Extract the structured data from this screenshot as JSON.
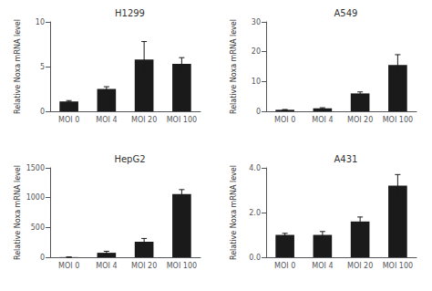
{
  "chart_data": [
    {
      "type": "bar",
      "title": "H1299",
      "ylabel": "Relative Noxa mRNA level",
      "categories": [
        "MOI 0",
        "MOI 4",
        "MOI 20",
        "MOI 100"
      ],
      "values": [
        1.1,
        2.5,
        5.8,
        5.3
      ],
      "errors": [
        0.1,
        0.25,
        2.0,
        0.7
      ],
      "color": "#1a1a1a",
      "ylim": [
        0,
        10
      ],
      "yticks": [
        0,
        5,
        10
      ],
      "grid": false
    },
    {
      "type": "bar",
      "title": "A549",
      "ylabel": "Relative Noxa mRNA level",
      "categories": [
        "MOI 0",
        "MOI 4",
        "MOI 20",
        "MOI 100"
      ],
      "values": [
        0.5,
        1.0,
        6.0,
        15.5
      ],
      "errors": [
        0.1,
        0.2,
        0.5,
        3.5
      ],
      "color": "#1a1a1a",
      "ylim": [
        0,
        30
      ],
      "yticks": [
        0,
        10,
        20,
        30
      ],
      "grid": false
    },
    {
      "type": "bar",
      "title": "HepG2",
      "ylabel": "Relative Noxa mRNA level",
      "categories": [
        "MOI 0",
        "MOI 4",
        "MOI 20",
        "MOI 100"
      ],
      "values": [
        2.0,
        75.0,
        260.0,
        1060.0
      ],
      "errors": [
        1.0,
        25.0,
        55.0,
        75.0
      ],
      "color": "#1a1a1a",
      "ylim": [
        0,
        1500
      ],
      "yticks": [
        0,
        500,
        1000,
        1500
      ],
      "grid": false
    },
    {
      "type": "bar",
      "title": "A431",
      "ylabel": "Relative Noxa mRNA level",
      "categories": [
        "MOI 0",
        "MOI 4",
        "MOI 20",
        "MOI 100"
      ],
      "values": [
        1.0,
        1.0,
        1.6,
        3.2
      ],
      "errors": [
        0.07,
        0.15,
        0.2,
        0.5
      ],
      "color": "#1a1a1a",
      "ylim": [
        0,
        4.0
      ],
      "yticks": [
        {
          "value": 0.0,
          "label": "0.0"
        },
        {
          "value": 2.0,
          "label": "2.0"
        },
        {
          "value": 4.0,
          "label": "4.0"
        }
      ],
      "grid": false
    }
  ]
}
